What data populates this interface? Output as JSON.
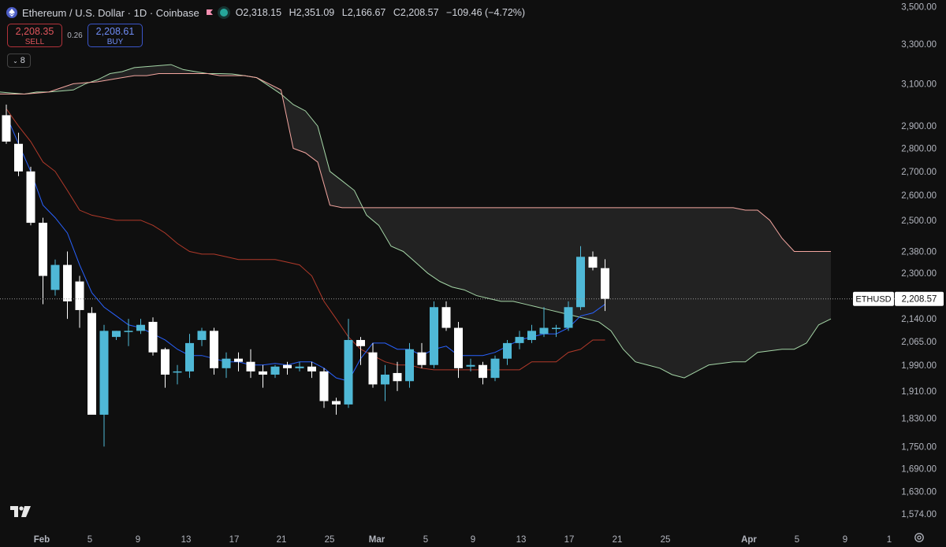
{
  "header": {
    "symbol_title": "Ethereum / U.S. Dollar · 1D · Coinbase",
    "open": "O2,318.15",
    "high": "H2,351.09",
    "low": "L2,166.67",
    "close": "C2,208.57",
    "change": "−109.46 (−4.72%)"
  },
  "trade": {
    "sell_price": "2,208.35",
    "sell_label": "SELL",
    "spread": "0.26",
    "buy_price": "2,208.61",
    "buy_label": "BUY"
  },
  "indicators_toggle": {
    "count": "8"
  },
  "price_tag": {
    "symbol": "ETHUSD",
    "value": "2,208.57"
  },
  "icons": [
    "ethereum-icon",
    "flag-icon",
    "live-dot-icon",
    "chevron-down-icon",
    "tradingview-logo-icon",
    "settings-icon"
  ],
  "colors": {
    "background": "#0f0f0f",
    "up_candle": "#4fb8d6",
    "down_candle": "#ffffff",
    "conversion_line": "#2962ff",
    "base_line": "#b23a2a",
    "span_a": "#a5d6a7",
    "span_b": "#f4a6a0"
  },
  "chart_data": {
    "type": "candlestick",
    "title": "",
    "y_scale": "log",
    "ylim": [
      1560,
      3520
    ],
    "y_ticks": [
      "3,500.00",
      "3,300.00",
      "3,100.00",
      "2,900.00",
      "2,800.00",
      "2,700.00",
      "2,600.00",
      "2,500.00",
      "2,380.00",
      "2,300.00",
      "2,140.00",
      "2,065.00",
      "1,990.00",
      "1,910.00",
      "1,830.00",
      "1,750.00",
      "1,690.00",
      "1,630.00",
      "1,574.00"
    ],
    "x_ticks": [
      "Feb",
      "5",
      "9",
      "13",
      "17",
      "21",
      "25",
      "Mar",
      "5",
      "9",
      "13",
      "17",
      "21",
      "25",
      "Apr",
      "5",
      "9",
      "1"
    ],
    "candles": [
      {
        "o": 2950,
        "h": 3000,
        "l": 2820,
        "c": 2830
      },
      {
        "o": 2820,
        "h": 2870,
        "l": 2680,
        "c": 2700
      },
      {
        "o": 2700,
        "h": 2720,
        "l": 2480,
        "c": 2490
      },
      {
        "o": 2490,
        "h": 2510,
        "l": 2190,
        "c": 2290
      },
      {
        "o": 2240,
        "h": 2350,
        "l": 2220,
        "c": 2330
      },
      {
        "o": 2330,
        "h": 2380,
        "l": 2140,
        "c": 2200
      },
      {
        "o": 2270,
        "h": 2290,
        "l": 2110,
        "c": 2170
      },
      {
        "o": 2160,
        "h": 2180,
        "l": 1850,
        "c": 1840
      },
      {
        "o": 1840,
        "h": 2120,
        "l": 1750,
        "c": 2100
      },
      {
        "o": 2080,
        "h": 2100,
        "l": 2070,
        "c": 2100
      },
      {
        "o": 2100,
        "h": 2140,
        "l": 2050,
        "c": 2100
      },
      {
        "o": 2100,
        "h": 2140,
        "l": 2090,
        "c": 2120
      },
      {
        "o": 2130,
        "h": 2145,
        "l": 2020,
        "c": 2030
      },
      {
        "o": 2040,
        "h": 2045,
        "l": 1920,
        "c": 1960
      },
      {
        "o": 1970,
        "h": 1990,
        "l": 1930,
        "c": 1970
      },
      {
        "o": 1970,
        "h": 2090,
        "l": 1950,
        "c": 2060
      },
      {
        "o": 2070,
        "h": 2110,
        "l": 2050,
        "c": 2100
      },
      {
        "o": 2100,
        "h": 2110,
        "l": 1960,
        "c": 1980
      },
      {
        "o": 1980,
        "h": 2030,
        "l": 1950,
        "c": 2010
      },
      {
        "o": 2010,
        "h": 2030,
        "l": 1970,
        "c": 2000
      },
      {
        "o": 2000,
        "h": 2040,
        "l": 1950,
        "c": 1970
      },
      {
        "o": 1970,
        "h": 1990,
        "l": 1920,
        "c": 1960
      },
      {
        "o": 1960,
        "h": 1990,
        "l": 1950,
        "c": 1985
      },
      {
        "o": 1990,
        "h": 2000,
        "l": 1960,
        "c": 1980
      },
      {
        "o": 1980,
        "h": 2000,
        "l": 1970,
        "c": 1985
      },
      {
        "o": 1985,
        "h": 2000,
        "l": 1950,
        "c": 1970
      },
      {
        "o": 1970,
        "h": 1980,
        "l": 1860,
        "c": 1880
      },
      {
        "o": 1880,
        "h": 1890,
        "l": 1840,
        "c": 1870
      },
      {
        "o": 1870,
        "h": 2140,
        "l": 1860,
        "c": 2070
      },
      {
        "o": 2070,
        "h": 2080,
        "l": 1990,
        "c": 2050
      },
      {
        "o": 2030,
        "h": 2060,
        "l": 1920,
        "c": 1930
      },
      {
        "o": 1930,
        "h": 1990,
        "l": 1880,
        "c": 1960
      },
      {
        "o": 1965,
        "h": 2000,
        "l": 1910,
        "c": 1940
      },
      {
        "o": 1940,
        "h": 2060,
        "l": 1920,
        "c": 2040
      },
      {
        "o": 2030,
        "h": 2060,
        "l": 1980,
        "c": 1990
      },
      {
        "o": 1990,
        "h": 2200,
        "l": 1980,
        "c": 2180
      },
      {
        "o": 2180,
        "h": 2200,
        "l": 2100,
        "c": 2110
      },
      {
        "o": 2110,
        "h": 2130,
        "l": 1950,
        "c": 1980
      },
      {
        "o": 1985,
        "h": 2010,
        "l": 1970,
        "c": 1990
      },
      {
        "o": 1990,
        "h": 2000,
        "l": 1930,
        "c": 1950
      },
      {
        "o": 1950,
        "h": 2020,
        "l": 1940,
        "c": 2010
      },
      {
        "o": 2010,
        "h": 2070,
        "l": 1990,
        "c": 2060
      },
      {
        "o": 2060,
        "h": 2100,
        "l": 2040,
        "c": 2080
      },
      {
        "o": 2070,
        "h": 2120,
        "l": 2060,
        "c": 2100
      },
      {
        "o": 2090,
        "h": 2180,
        "l": 2080,
        "c": 2110
      },
      {
        "o": 2110,
        "h": 2120,
        "l": 2080,
        "c": 2110
      },
      {
        "o": 2110,
        "h": 2200,
        "l": 2100,
        "c": 2180
      },
      {
        "o": 2180,
        "h": 2400,
        "l": 2170,
        "c": 2360
      },
      {
        "o": 2360,
        "h": 2380,
        "l": 2310,
        "c": 2320
      },
      {
        "o": 2318.15,
        "h": 2351.09,
        "l": 2166.67,
        "c": 2208.57
      }
    ],
    "conversion_line": [
      2950,
      2820,
      2700,
      2560,
      2510,
      2450,
      2330,
      2230,
      2180,
      2150,
      2120,
      2110,
      2090,
      2070,
      2040,
      2020,
      2020,
      2010,
      2000,
      2000,
      1990,
      1990,
      1995,
      1990,
      2000,
      2000,
      1980,
      1950,
      1940,
      2010,
      2060,
      2060,
      2040,
      2040,
      2020,
      2040,
      2050,
      2020,
      2020,
      2020,
      2030,
      2050,
      2070,
      2080,
      2090,
      2090,
      2110,
      2150,
      2160,
      2190
    ],
    "base_line": [
      2980,
      2900,
      2830,
      2740,
      2700,
      2620,
      2540,
      2520,
      2510,
      2500,
      2500,
      2500,
      2480,
      2450,
      2410,
      2380,
      2370,
      2370,
      2360,
      2350,
      2350,
      2350,
      2350,
      2340,
      2330,
      2290,
      2200,
      2140,
      2080,
      2040,
      2020,
      2000,
      1990,
      1990,
      1980,
      1975,
      1975,
      1975,
      1975,
      1975,
      1975,
      1975,
      1975,
      2000,
      2000,
      2000,
      2030,
      2040,
      2070,
      2070
    ],
    "span_a": [
      3060,
      3055,
      3050,
      3060,
      3060,
      3065,
      3070,
      3100,
      3120,
      3150,
      3160,
      3180,
      3185,
      3190,
      3195,
      3170,
      3160,
      3150,
      3150,
      3148,
      3140,
      3130,
      3090,
      3050,
      3000,
      2970,
      2900,
      2700,
      2660,
      2620,
      2520,
      2480,
      2400,
      2380,
      2340,
      2300,
      2270,
      2250,
      2240,
      2220,
      2210,
      2200,
      2200,
      2190,
      2180,
      2170,
      2160,
      2150,
      2140,
      2130,
      2100,
      2040,
      2000,
      1990,
      1980,
      1960,
      1950,
      1970,
      1990,
      1995,
      2000,
      2000,
      2030,
      2035,
      2040,
      2040,
      2060,
      2120,
      2140
    ],
    "span_b": [
      3050,
      3050,
      3050,
      3055,
      3060,
      3080,
      3100,
      3105,
      3110,
      3120,
      3130,
      3140,
      3140,
      3150,
      3150,
      3150,
      3150,
      3150,
      3140,
      3140,
      3140,
      3130,
      3100,
      3070,
      2800,
      2780,
      2740,
      2560,
      2550,
      2550,
      2550,
      2550,
      2550,
      2550,
      2550,
      2550,
      2550,
      2550,
      2550,
      2550,
      2550,
      2550,
      2550,
      2550,
      2550,
      2550,
      2550,
      2550,
      2550,
      2550,
      2550,
      2550,
      2550,
      2550,
      2550,
      2550,
      2550,
      2550,
      2550,
      2550,
      2550,
      2540,
      2540,
      2500,
      2430,
      2380,
      2380,
      2380,
      2380
    ],
    "last_price": 2208.57
  }
}
